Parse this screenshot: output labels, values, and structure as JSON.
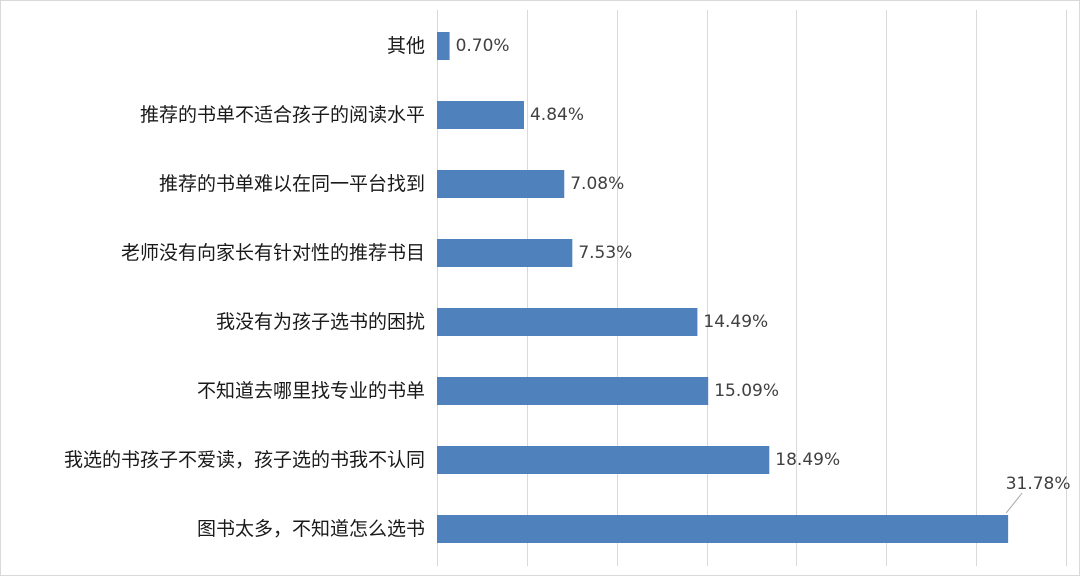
{
  "chart_data": {
    "type": "bar",
    "orientation": "horizontal",
    "categories": [
      "其他",
      "推荐的书单不适合孩子的阅读水平",
      "推荐的书单难以在同一平台找到",
      "老师没有向家长有针对性的推荐书目",
      "我没有为孩子选书的困扰",
      "不知道去哪里找专业的书单",
      "我选的书孩子不爱读，孩子选的书我不认同",
      "图书太多，不知道怎么选书"
    ],
    "values": [
      0.7,
      4.84,
      7.08,
      7.53,
      14.49,
      15.09,
      18.49,
      31.78
    ],
    "data_labels": [
      "0.70%",
      "4.84%",
      "7.08%",
      "7.53%",
      "14.49%",
      "15.09%",
      "18.49%",
      "31.78%"
    ],
    "unit": "%",
    "xlim": [
      0,
      35
    ],
    "grid": "vertical",
    "legend": "none",
    "title": "",
    "xlabel": "",
    "ylabel": "",
    "bar_color": "#4f81bd"
  }
}
